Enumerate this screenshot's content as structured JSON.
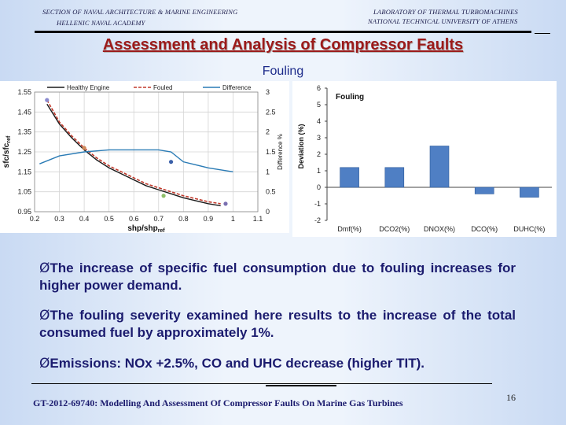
{
  "header": {
    "left_line1": "SECTION OF NAVAL ARCHITECTURE & MARINE ENGINEERING",
    "left_line2": "HELLENIC NAVAL ACADEMY",
    "right_line1": "LABORATORY OF THERMAL TURBOMACHINES",
    "right_line2": "NATIONAL TECHNICAL UNIVERSITY OF ATHENS"
  },
  "title": "Assessment and Analysis of Compressor Faults",
  "subtitle": "Fouling",
  "bullets": [
    "The increase of specific fuel consumption due to fouling increases for higher power demand.",
    "The fouling severity examined here results to the increase of the total consumed fuel by approximately 1%.",
    "Emissions: NOx +2.5%, CO and UHC decrease (higher TIT)."
  ],
  "bullet_marker": "Ø",
  "footer": "GT-2012-69740: Modelling And Assessment Of Compressor Faults On Marine Gas Turbines",
  "page_number": "16",
  "chart_data": [
    {
      "type": "line",
      "legend": [
        "Healthy Engine",
        "Fouled",
        "Difference"
      ],
      "legend_position": "top",
      "xlabel_main": "shp/shp",
      "xlabel_sub": "ref",
      "ylabel_main": "sfc/sfc",
      "ylabel_sub": "ref",
      "y2label": "Difference %",
      "xlim": [
        0.2,
        1.1
      ],
      "ylim": [
        0.95,
        1.55
      ],
      "y2lim": [
        0,
        3
      ],
      "x_ticks": [
        "0.2",
        "0.3",
        "0.4",
        "0.5",
        "0.6",
        "0.7",
        "0.8",
        "0.9",
        "1",
        "1.1"
      ],
      "y_ticks": [
        "0.95",
        "1.05",
        "1.15",
        "1.25",
        "1.35",
        "1.45",
        "1.55"
      ],
      "y2_ticks": [
        "0",
        "0.5",
        "1",
        "1.5",
        "2",
        "2.5",
        "3"
      ],
      "grid": true,
      "series": [
        {
          "name": "Healthy Engine",
          "axis": "left",
          "color": "#1a1a1a",
          "x": [
            0.25,
            0.3,
            0.35,
            0.4,
            0.45,
            0.5,
            0.55,
            0.6,
            0.65,
            0.7,
            0.75,
            0.8,
            0.85,
            0.9,
            0.95
          ],
          "y": [
            1.49,
            1.39,
            1.32,
            1.26,
            1.21,
            1.17,
            1.14,
            1.11,
            1.08,
            1.06,
            1.04,
            1.02,
            1.005,
            0.99,
            0.98
          ]
        },
        {
          "name": "Fouled",
          "axis": "left",
          "color": "#c0392b",
          "x": [
            0.25,
            0.3,
            0.35,
            0.4,
            0.45,
            0.5,
            0.55,
            0.6,
            0.65,
            0.7,
            0.75,
            0.8,
            0.85,
            0.9,
            0.95
          ],
          "y": [
            1.51,
            1.4,
            1.33,
            1.27,
            1.22,
            1.18,
            1.15,
            1.12,
            1.09,
            1.07,
            1.05,
            1.03,
            1.015,
            1.0,
            0.99
          ]
        },
        {
          "name": "Difference",
          "axis": "right",
          "color": "#2a7bb5",
          "x": [
            0.22,
            0.3,
            0.4,
            0.5,
            0.6,
            0.7,
            0.75,
            0.8,
            0.9,
            1.0
          ],
          "y": [
            1.2,
            1.4,
            1.5,
            1.55,
            1.55,
            1.55,
            1.5,
            1.25,
            1.1,
            1.0
          ]
        }
      ],
      "markers": [
        {
          "x": 0.25,
          "y": 1.51,
          "color": "#8a8acf"
        },
        {
          "x": 0.4,
          "y": 1.27,
          "color": "#d08a5a"
        },
        {
          "x": 0.75,
          "y": 1.2,
          "color": "#3a5fa8"
        },
        {
          "x": 0.72,
          "y": 1.03,
          "color": "#8fbf6a"
        },
        {
          "x": 0.97,
          "y": 0.99,
          "color": "#7a6fb0"
        }
      ]
    },
    {
      "type": "bar",
      "title": "Fouling",
      "ylabel": "Deviation (%)",
      "categories": [
        "Dmf(%)",
        "DCO2(%)",
        "DNOX(%)",
        "DCO(%)",
        "DUHC(%)"
      ],
      "values": [
        1.2,
        1.2,
        2.5,
        -0.4,
        -0.6
      ],
      "ylim": [
        -2,
        6
      ],
      "y_ticks": [
        "-2",
        "-1",
        "0",
        "1",
        "2",
        "3",
        "4",
        "5",
        "6"
      ],
      "bar_color": "#4f7fc4",
      "grid": false
    }
  ]
}
